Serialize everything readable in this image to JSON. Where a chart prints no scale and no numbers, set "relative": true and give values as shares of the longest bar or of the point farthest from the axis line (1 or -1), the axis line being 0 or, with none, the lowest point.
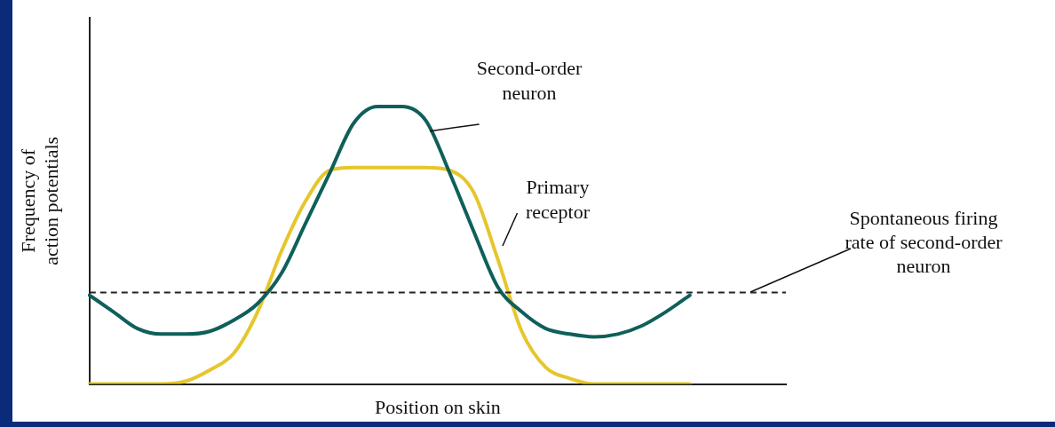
{
  "chart_data": {
    "type": "line",
    "relative": true,
    "xlabel": "Position on skin",
    "ylabel": "Frequency of action potentials",
    "categories": [
      null,
      null,
      null,
      null,
      null,
      null,
      null,
      null,
      null,
      null,
      null,
      null,
      null,
      null,
      null,
      null,
      null,
      null,
      null,
      null,
      null,
      null,
      null,
      null,
      null,
      null,
      null,
      null,
      null,
      null
    ],
    "series": [
      {
        "name": "Second-order neuron",
        "color": "#0f5f5a",
        "values": [
          0.32,
          0.26,
          0.2,
          0.18,
          0.18,
          0.19,
          0.23,
          0.29,
          0.4,
          0.58,
          0.76,
          0.94,
          1,
          1,
          0.95,
          0.76,
          0.55,
          0.35,
          0.26,
          0.2,
          0.18,
          0.17,
          0.18,
          0.21,
          0.26,
          0.32,
          null,
          null,
          null,
          null
        ]
      },
      {
        "name": "Primary receptor",
        "color": "#e6c62c",
        "values": [
          0,
          0,
          0,
          0,
          0.01,
          0.05,
          0.11,
          0.26,
          0.48,
          0.66,
          0.77,
          0.78,
          0.78,
          0.78,
          0.78,
          0.77,
          0.69,
          0.45,
          0.19,
          0.06,
          0.02,
          0,
          0,
          0,
          0,
          0,
          null,
          null,
          null,
          null
        ]
      }
    ],
    "ref_lines": [
      {
        "axis": "y",
        "value": 0.33,
        "label": "Spontaneous firing rate of second-order neuron",
        "color": "#222222",
        "line_style": "dashed"
      }
    ],
    "grid": false,
    "legend": false,
    "marker": "none",
    "line_style": "solid"
  }
}
